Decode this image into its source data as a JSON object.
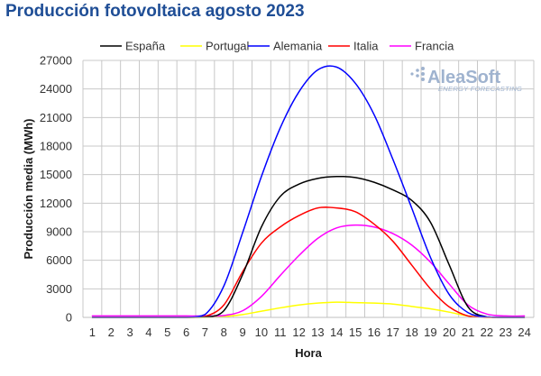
{
  "page_title": "Producción fotovoltaica agosto 2023",
  "logo": {
    "name": "AleaSoft",
    "tagline": "ENERGY FORECASTING",
    "color": "#9fb3cf"
  },
  "chart_data": {
    "type": "line",
    "title": "Producción fotovoltaica agosto 2023",
    "xlabel": "Hora",
    "ylabel": "Producción media (MWh)",
    "x": [
      1,
      2,
      3,
      4,
      5,
      6,
      7,
      8,
      9,
      10,
      11,
      12,
      13,
      14,
      15,
      16,
      17,
      18,
      19,
      20,
      21,
      22,
      23,
      24
    ],
    "ylim": [
      0,
      27000
    ],
    "yticks": [
      0,
      3000,
      6000,
      9000,
      12000,
      15000,
      18000,
      21000,
      24000,
      27000
    ],
    "ytick_labels": [
      "0",
      "3000",
      "6000",
      "9000",
      "12000",
      "15000",
      "18000",
      "21000",
      "24000",
      "27000"
    ],
    "xtick_labels": [
      "1",
      "2",
      "3",
      "4",
      "5",
      "6",
      "7",
      "8",
      "9",
      "10",
      "11",
      "12",
      "13",
      "14",
      "15",
      "16",
      "17",
      "18",
      "19",
      "20",
      "21",
      "22",
      "23",
      "24"
    ],
    "grid": true,
    "legend_position": "top",
    "series": [
      {
        "name": "España",
        "color": "#000000",
        "values": [
          0,
          0,
          0,
          0,
          0,
          0,
          30,
          700,
          4500,
          9500,
          12700,
          14000,
          14600,
          14800,
          14700,
          14200,
          13400,
          12300,
          10000,
          5500,
          1100,
          50,
          0,
          0
        ]
      },
      {
        "name": "Portugal",
        "color": "#ffff00",
        "values": [
          0,
          0,
          0,
          0,
          0,
          0,
          0,
          80,
          300,
          650,
          1000,
          1300,
          1500,
          1600,
          1550,
          1500,
          1400,
          1150,
          900,
          550,
          150,
          0,
          0,
          0
        ]
      },
      {
        "name": "Alemania",
        "color": "#0000ff",
        "values": [
          0,
          0,
          0,
          0,
          0,
          0,
          300,
          3300,
          8900,
          14800,
          19900,
          23700,
          26000,
          26300,
          24600,
          21300,
          16600,
          11500,
          6300,
          2400,
          500,
          50,
          0,
          0
        ]
      },
      {
        "name": "Italia",
        "color": "#ff0000",
        "values": [
          0,
          0,
          0,
          0,
          0,
          0,
          100,
          1300,
          4800,
          7800,
          9500,
          10700,
          11500,
          11500,
          11100,
          9800,
          8000,
          5500,
          3000,
          1100,
          150,
          0,
          0,
          0
        ]
      },
      {
        "name": "Francia",
        "color": "#ff00ff",
        "values": [
          150,
          150,
          150,
          150,
          150,
          150,
          150,
          200,
          700,
          2200,
          4400,
          6500,
          8300,
          9400,
          9700,
          9500,
          8800,
          7600,
          5800,
          3500,
          1300,
          350,
          150,
          150
        ]
      }
    ]
  }
}
